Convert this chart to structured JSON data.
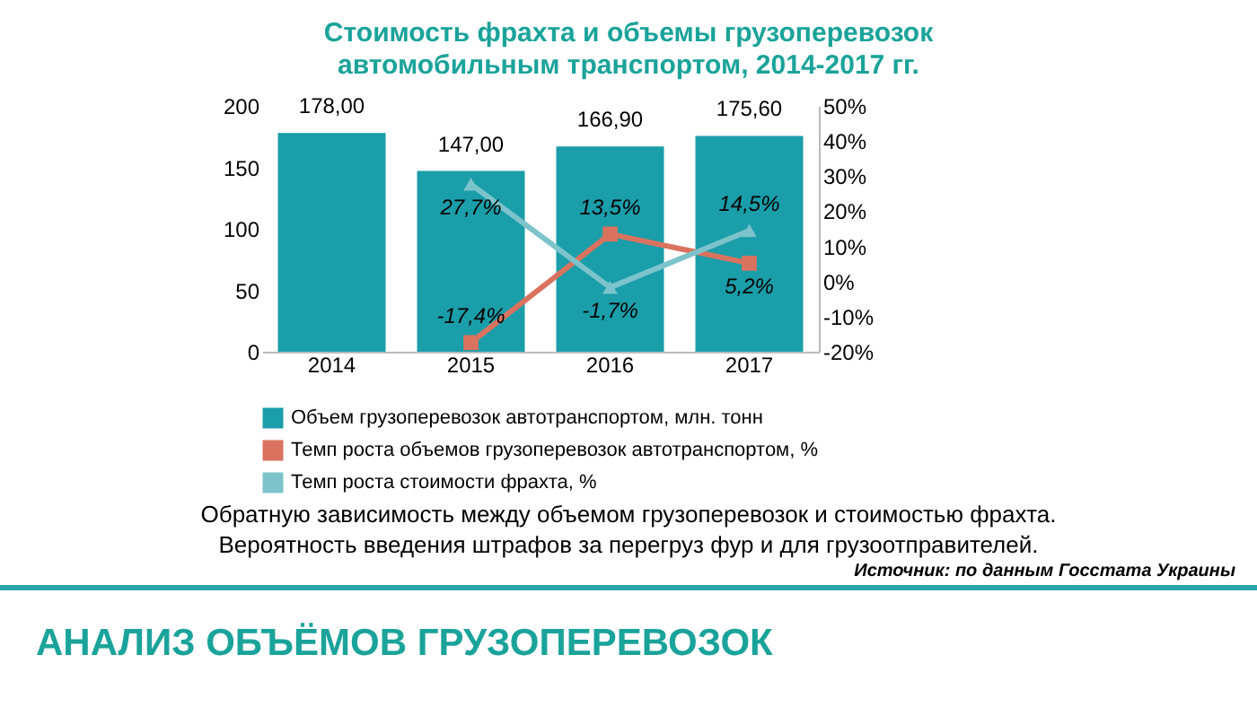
{
  "chart_data": {
    "type": "bar",
    "title": "Стоимость фрахта и объемы грузоперевозок  автомобильным транспортом, 2014-2017 гг.",
    "categories": [
      "2014",
      "2015",
      "2016",
      "2017"
    ],
    "series": [
      {
        "name": "Объем грузоперевозок автотранспортом, млн. тонн",
        "type": "bar",
        "color": "#1a9ea9",
        "values": [
          178,
          147,
          166.9,
          175.6
        ],
        "value_labels": [
          "178,00",
          "147,00",
          "166,90",
          "175,60"
        ]
      },
      {
        "name": "Темп роста объемов грузоперевозок автотранспортом, %",
        "type": "line",
        "axis": "y2",
        "marker": "square",
        "color": "#d9735f",
        "values": [
          null,
          -17.4,
          13.5,
          5.2
        ],
        "value_labels": [
          null,
          "-17,4%",
          "13,5%",
          "5,2%"
        ]
      },
      {
        "name": "Темп роста стоимости фрахта, %",
        "type": "line",
        "axis": "y2",
        "marker": "triangle",
        "color": "#7cc3cb",
        "values": [
          null,
          27.7,
          -1.7,
          14.5
        ],
        "value_labels": [
          null,
          "27,7%",
          "-1,7%",
          "14,5%"
        ]
      }
    ],
    "ylim": [
      0,
      200
    ],
    "yticks": [
      0,
      50,
      100,
      150,
      200
    ],
    "y2lim": [
      -20,
      50
    ],
    "y2ticks": [
      {
        "value": -20,
        "label": "-20%"
      },
      {
        "value": -10,
        "label": "-10%"
      },
      {
        "value": 0,
        "label": "0%"
      },
      {
        "value": 10,
        "label": "10%"
      },
      {
        "value": 20,
        "label": "20%"
      },
      {
        "value": 30,
        "label": "30%"
      },
      {
        "value": 40,
        "label": "40%"
      },
      {
        "value": 50,
        "label": "50%"
      }
    ],
    "grid": false,
    "legend": "bottom",
    "annotations": [
      "Обратную зависимость между объемом грузоперевозок и стоимостью фрахта.\nВероятность введения штрафов за перегруз фур и для грузоотправителей.",
      "Источник: по данным Госстата Украины",
      "АНАЛИЗ ОБЪЁМОВ ГРУЗОПЕРЕВОЗОК"
    ]
  }
}
